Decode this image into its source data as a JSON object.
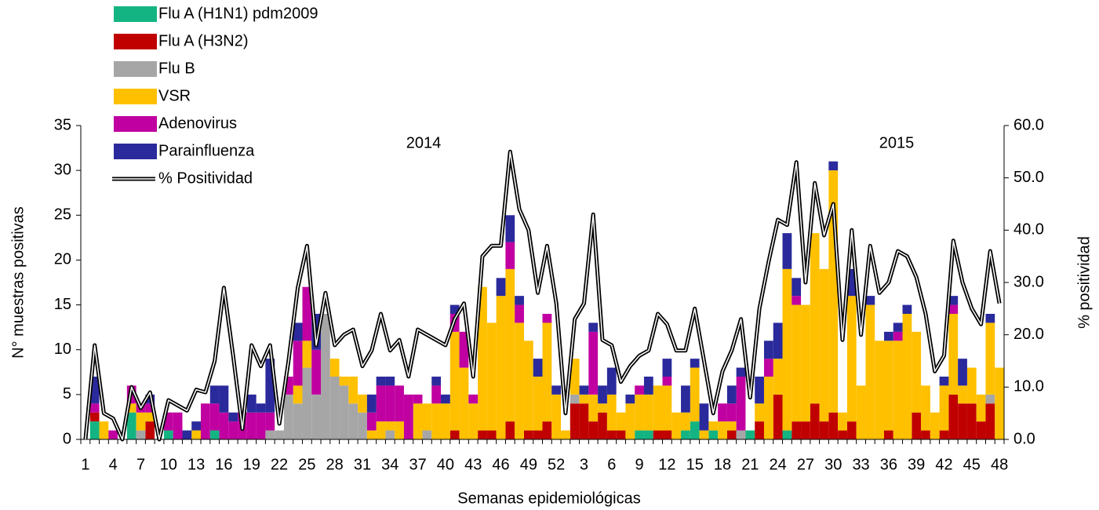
{
  "chart_data": {
    "type": "bar",
    "stacked": true,
    "x_label": "Semanas epidemiológicas",
    "y_label": "N° muestras positivas",
    "y2_label": "% positividad",
    "annotations": [
      "2014",
      "2015"
    ],
    "categories": [
      "1",
      null,
      null,
      "4",
      null,
      null,
      "7",
      null,
      null,
      "10",
      null,
      null,
      "13",
      null,
      null,
      "16",
      null,
      null,
      "19",
      null,
      null,
      "22",
      null,
      null,
      "25",
      null,
      null,
      "28",
      null,
      null,
      "31",
      null,
      null,
      "34",
      null,
      null,
      "37",
      null,
      null,
      "40",
      null,
      null,
      "43",
      null,
      null,
      "46",
      null,
      null,
      "49",
      null,
      null,
      "52",
      null,
      null,
      "3",
      null,
      null,
      "6",
      null,
      null,
      "9",
      null,
      null,
      "12",
      null,
      null,
      "15",
      null,
      null,
      "18",
      null,
      null,
      "21",
      null,
      null,
      "24",
      null,
      null,
      "27",
      null,
      null,
      "30",
      null,
      null,
      "33",
      null,
      null,
      "36",
      null,
      null,
      "39",
      null,
      null,
      "42",
      null,
      null,
      "45",
      null,
      null,
      "48"
    ],
    "ylim": [
      0,
      35
    ],
    "yticks": [
      0,
      5,
      10,
      15,
      20,
      25,
      30,
      35
    ],
    "y2lim": [
      0,
      60
    ],
    "y2ticks": [
      {
        "value": 0,
        "label": "0.0"
      },
      {
        "value": 10,
        "label": "10.0"
      },
      {
        "value": 20,
        "label": "20.0"
      },
      {
        "value": 30,
        "label": "30.0"
      },
      {
        "value": 40,
        "label": "40.0"
      },
      {
        "value": 50,
        "label": "50.0"
      },
      {
        "value": 60,
        "label": "60.0"
      }
    ],
    "series": [
      {
        "name": "Flu A (H1N1) pdm2009",
        "color": "#14b482",
        "values": [
          0,
          2,
          0,
          0,
          0,
          3,
          0,
          0,
          0,
          1,
          0,
          0,
          0,
          0,
          1,
          0,
          0,
          0,
          0,
          0,
          0,
          0,
          0,
          0,
          0,
          0,
          0,
          0,
          0,
          0,
          0,
          0,
          0,
          0,
          0,
          0,
          0,
          0,
          0,
          0,
          0,
          0,
          0,
          0,
          0,
          0,
          0,
          0,
          0,
          0,
          0,
          0,
          0,
          0,
          0,
          0,
          0,
          0,
          0,
          0,
          1,
          1,
          0,
          0,
          0,
          1,
          2,
          0,
          1,
          0,
          0,
          0,
          1,
          0,
          0,
          0,
          1,
          0,
          0,
          0,
          0,
          0,
          0,
          0,
          0,
          0,
          0,
          0,
          0,
          0,
          0,
          0,
          0,
          0,
          0,
          0,
          0,
          0,
          0,
          0
        ]
      },
      {
        "name": "Flu A (H3N2)",
        "color": "#c00000",
        "values": [
          0,
          1,
          0,
          0,
          0,
          0,
          0,
          2,
          0,
          0,
          0,
          0,
          0,
          0,
          0,
          0,
          0,
          0,
          0,
          0,
          0,
          0,
          0,
          0,
          0,
          0,
          0,
          0,
          0,
          0,
          0,
          0,
          0,
          0,
          0,
          0,
          0,
          0,
          0,
          0,
          1,
          0,
          0,
          1,
          1,
          0,
          2,
          0,
          1,
          1,
          2,
          0,
          0,
          4,
          4,
          2,
          3,
          1,
          1,
          0,
          0,
          0,
          1,
          1,
          0,
          0,
          0,
          0,
          0,
          0,
          1,
          0,
          0,
          2,
          0,
          5,
          0,
          2,
          2,
          4,
          2,
          3,
          1,
          2,
          0,
          0,
          0,
          1,
          0,
          0,
          3,
          1,
          0,
          1,
          5,
          4,
          4,
          2,
          4,
          0
        ]
      },
      {
        "name": "Flu B",
        "color": "#a6a6a6",
        "values": [
          0,
          0,
          0,
          0,
          0,
          0,
          1,
          0,
          0,
          0,
          0,
          0,
          0,
          0,
          0,
          0,
          0,
          0,
          0,
          0,
          1,
          1,
          5,
          4,
          8,
          5,
          14,
          7,
          6,
          4,
          3,
          0,
          0,
          1,
          0,
          0,
          0,
          1,
          0,
          0,
          0,
          0,
          0,
          0,
          0,
          0,
          0,
          0,
          0,
          0,
          0,
          0,
          0,
          1,
          0,
          0,
          0,
          0,
          0,
          0,
          0,
          0,
          0,
          0,
          0,
          0,
          0,
          0,
          0,
          0,
          0,
          1,
          0,
          0,
          0,
          0,
          0,
          0,
          0,
          0,
          0,
          0,
          0,
          0,
          0,
          0,
          0,
          0,
          0,
          0,
          0,
          0,
          0,
          0,
          0,
          0,
          0,
          0,
          1,
          0
        ]
      },
      {
        "name": "VSR",
        "color": "#ffc000",
        "values": [
          0,
          0,
          2,
          0,
          0,
          1,
          2,
          1,
          0,
          0,
          0,
          0,
          1,
          0,
          0,
          0,
          0,
          0,
          0,
          0,
          0,
          0,
          0,
          2,
          3,
          0,
          0,
          2,
          1,
          3,
          2,
          1,
          2,
          1,
          2,
          0,
          4,
          3,
          4,
          4,
          11,
          8,
          4,
          16,
          12,
          16,
          17,
          13,
          10,
          6,
          11,
          5,
          1,
          4,
          1,
          3,
          1,
          4,
          2,
          4,
          4,
          4,
          5,
          5,
          3,
          2,
          6,
          1,
          1,
          2,
          1,
          0,
          0,
          2,
          7,
          4,
          18,
          13,
          13,
          19,
          17,
          27,
          2,
          14,
          6,
          15,
          11,
          10,
          11,
          14,
          9,
          5,
          3,
          5,
          9,
          2,
          4,
          3,
          8,
          8
        ]
      },
      {
        "name": "Adenovirus",
        "color": "#c000a0",
        "values": [
          0,
          1,
          0,
          1,
          0,
          2,
          1,
          1,
          0,
          2,
          3,
          0,
          0,
          4,
          3,
          3,
          2,
          3,
          3,
          3,
          2,
          0,
          2,
          5,
          6,
          5,
          0,
          0,
          0,
          0,
          0,
          2,
          4,
          4,
          4,
          5,
          1,
          0,
          2,
          0,
          2,
          4,
          1,
          0,
          0,
          0,
          3,
          2,
          0,
          0,
          1,
          0,
          0,
          0,
          0,
          7,
          0,
          0,
          0,
          0,
          1,
          0,
          0,
          1,
          0,
          0,
          0,
          0,
          0,
          2,
          2,
          6,
          0,
          0,
          2,
          0,
          0,
          1,
          0,
          0,
          0,
          0,
          0,
          0,
          0,
          0,
          0,
          0,
          1,
          0,
          0,
          0,
          0,
          0,
          1,
          0,
          0,
          0,
          0,
          0
        ]
      },
      {
        "name": "Parainfluenza",
        "color": "#2a2a9c",
        "values": [
          0,
          3,
          0,
          0,
          0,
          0,
          0,
          1,
          0,
          0,
          0,
          1,
          1,
          0,
          2,
          3,
          1,
          0,
          2,
          1,
          6,
          0,
          0,
          2,
          0,
          4,
          0,
          0,
          0,
          0,
          0,
          2,
          1,
          1,
          0,
          0,
          0,
          0,
          1,
          1,
          1,
          0,
          0,
          0,
          0,
          2,
          3,
          1,
          0,
          2,
          0,
          1,
          0,
          0,
          1,
          1,
          2,
          3,
          0,
          1,
          0,
          2,
          0,
          2,
          0,
          3,
          1,
          3,
          0,
          0,
          2,
          1,
          0,
          3,
          2,
          4,
          4,
          2,
          0,
          0,
          0,
          1,
          0,
          3,
          0,
          1,
          0,
          1,
          1,
          1,
          0,
          0,
          0,
          1,
          1,
          3,
          0,
          0,
          1,
          0
        ]
      },
      {
        "name": "% Positividad",
        "color": "#000000",
        "axis": "y2",
        "values": [
          0,
          18,
          5,
          4,
          0,
          10,
          6,
          9,
          0,
          7.5,
          6.5,
          5.5,
          9.5,
          9,
          15,
          29,
          16,
          2,
          18,
          14,
          18,
          3,
          15,
          29,
          37,
          18,
          28,
          18,
          20,
          21,
          14,
          17,
          24,
          17,
          19,
          12,
          21,
          20,
          19,
          18,
          23,
          26,
          12,
          35,
          37,
          37,
          55,
          44,
          40,
          28,
          37,
          26,
          5,
          23,
          26,
          43,
          19,
          18,
          11,
          14,
          16,
          17,
          24,
          22,
          17,
          17,
          25,
          15,
          5,
          13,
          17,
          23,
          8,
          25,
          34,
          42,
          41,
          53,
          30,
          49,
          39,
          45,
          19,
          40,
          20,
          37,
          28,
          30,
          36,
          35,
          31,
          24,
          13,
          16,
          38,
          30,
          25,
          22,
          36,
          26
        ]
      }
    ]
  }
}
